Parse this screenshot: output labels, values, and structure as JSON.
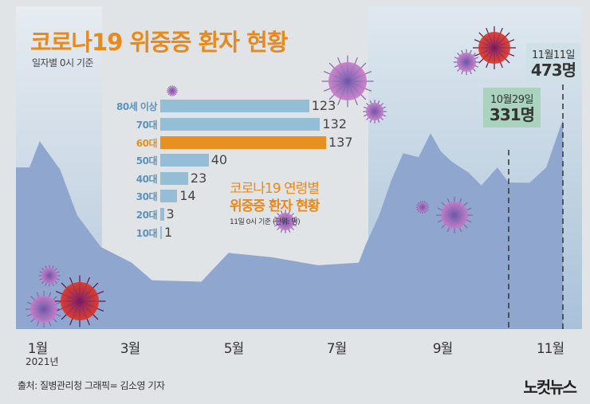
{
  "header": {
    "title": "코로나19 위중증 환자 현황",
    "subtitle": "일자별 0시 기준"
  },
  "chart_data": [
    {
      "type": "area",
      "title": "코로나19 위중증 환자 현황",
      "subtitle": "일자별 0시 기준",
      "x_tick_labels": [
        "1월",
        "3월",
        "5월",
        "7월",
        "9월",
        "11월"
      ],
      "x_year_label": "2021년",
      "grid": false,
      "color": "#8fa6cf",
      "points": [
        [
          "2021-01-01",
          365
        ],
        [
          "2021-01-07",
          424
        ],
        [
          "2021-01-19",
          360
        ],
        [
          "2021-01-29",
          257
        ],
        [
          "2021-02-12",
          185
        ],
        [
          "2021-03-02",
          150
        ],
        [
          "2021-03-14",
          110
        ],
        [
          "2021-04-12",
          107
        ],
        [
          "2021-04-28",
          172
        ],
        [
          "2021-05-24",
          162
        ],
        [
          "2021-06-20",
          144
        ],
        [
          "2021-07-14",
          150
        ],
        [
          "2021-07-18",
          190
        ],
        [
          "2021-07-26",
          257
        ],
        [
          "2021-08-02",
          335
        ],
        [
          "2021-08-09",
          397
        ],
        [
          "2021-08-18",
          388
        ],
        [
          "2021-08-25",
          442
        ],
        [
          "2021-08-31",
          401
        ],
        [
          "2021-09-09",
          378
        ],
        [
          "2021-09-24",
          353
        ],
        [
          "2021-10-05",
          324
        ],
        [
          "2021-10-19",
          365
        ],
        [
          "2021-10-29",
          331
        ],
        [
          "2021-11-03",
          330
        ],
        [
          "2021-11-07",
          365
        ],
        [
          "2021-11-11",
          473
        ]
      ],
      "annotations": [
        {
          "date_label": "10월29일",
          "value_label": "331명",
          "date": "2021-10-29",
          "color": "#a9d3bd"
        },
        {
          "date_label": "11월11일",
          "value_label": "473명",
          "date": "2021-11-11",
          "color": "#cfe0e6"
        }
      ]
    },
    {
      "type": "bar",
      "orientation": "horizontal",
      "title": "코로나19 연령별",
      "subtitle": "위중증 환자 현황",
      "note": "11일 0시 기준 (단위: 명)",
      "categories": [
        "80세 이상",
        "70대",
        "60대",
        "50대",
        "40대",
        "30대",
        "20대",
        "10대"
      ],
      "values": [
        123,
        132,
        137,
        40,
        23,
        14,
        3,
        1
      ],
      "highlight": "60대",
      "bar_color": "#94bdd6",
      "highlight_color": "#e8901f"
    }
  ],
  "footer": {
    "source": "출처: 질병관리청   그래픽= 김소영 기자",
    "logo": "노컷뉴스"
  }
}
